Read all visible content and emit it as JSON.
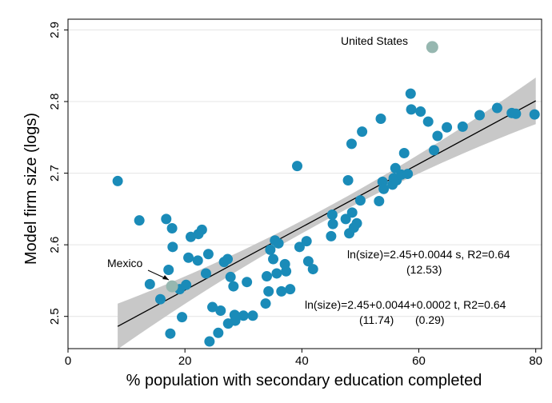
{
  "chart_data": {
    "type": "scatter",
    "xlabel": "% population with secondary education completed",
    "ylabel": "Model firm size (logs)",
    "xlim": [
      0,
      81
    ],
    "ylim": [
      2.455,
      2.915
    ],
    "x_ticks": [
      0,
      20,
      40,
      60,
      80
    ],
    "y_ticks": [
      2.5,
      2.6,
      2.7,
      2.8,
      2.9
    ],
    "grid": "horizontal",
    "colors": {
      "points": "#1a8bb8",
      "highlight": "#96b7b0",
      "band": "#c8c8c8",
      "fit_line": "#000000",
      "grid": "#e4e4e4"
    },
    "fit_line": {
      "x": [
        8.5,
        80
      ],
      "y": [
        2.486,
        2.801
      ],
      "band_halfwidth": [
        0.033,
        0.033
      ]
    },
    "points": [
      {
        "x": 8.5,
        "y": 2.689
      },
      {
        "x": 12.2,
        "y": 2.634
      },
      {
        "x": 14,
        "y": 2.545
      },
      {
        "x": 15.8,
        "y": 2.524
      },
      {
        "x": 16.8,
        "y": 2.636
      },
      {
        "x": 17.2,
        "y": 2.565
      },
      {
        "x": 17.8,
        "y": 2.623
      },
      {
        "x": 17.9,
        "y": 2.597
      },
      {
        "x": 17.5,
        "y": 2.476
      },
      {
        "x": 19.1,
        "y": 2.538
      },
      {
        "x": 19.5,
        "y": 2.499
      },
      {
        "x": 20.2,
        "y": 2.544
      },
      {
        "x": 20.6,
        "y": 2.582
      },
      {
        "x": 21,
        "y": 2.611
      },
      {
        "x": 22.2,
        "y": 2.578
      },
      {
        "x": 22.3,
        "y": 2.615
      },
      {
        "x": 22.9,
        "y": 2.621
      },
      {
        "x": 23.6,
        "y": 2.56
      },
      {
        "x": 24,
        "y": 2.587
      },
      {
        "x": 24.2,
        "y": 2.465
      },
      {
        "x": 24.7,
        "y": 2.513
      },
      {
        "x": 25.7,
        "y": 2.477
      },
      {
        "x": 26.1,
        "y": 2.508
      },
      {
        "x": 26.7,
        "y": 2.576
      },
      {
        "x": 27.3,
        "y": 2.58
      },
      {
        "x": 27.4,
        "y": 2.49
      },
      {
        "x": 27.8,
        "y": 2.555
      },
      {
        "x": 28.3,
        "y": 2.542
      },
      {
        "x": 28.5,
        "y": 2.502
      },
      {
        "x": 28.6,
        "y": 2.494
      },
      {
        "x": 30,
        "y": 2.501
      },
      {
        "x": 30.6,
        "y": 2.548
      },
      {
        "x": 31.6,
        "y": 2.501
      },
      {
        "x": 33.8,
        "y": 2.518
      },
      {
        "x": 34,
        "y": 2.556
      },
      {
        "x": 34.3,
        "y": 2.535
      },
      {
        "x": 34.6,
        "y": 2.593
      },
      {
        "x": 35.1,
        "y": 2.58
      },
      {
        "x": 35.4,
        "y": 2.606
      },
      {
        "x": 35.7,
        "y": 2.56
      },
      {
        "x": 36,
        "y": 2.602
      },
      {
        "x": 36.5,
        "y": 2.535
      },
      {
        "x": 37.1,
        "y": 2.573
      },
      {
        "x": 37.3,
        "y": 2.563
      },
      {
        "x": 38,
        "y": 2.538
      },
      {
        "x": 39.2,
        "y": 2.71
      },
      {
        "x": 39.6,
        "y": 2.597
      },
      {
        "x": 40.8,
        "y": 2.605
      },
      {
        "x": 41.1,
        "y": 2.577
      },
      {
        "x": 41.9,
        "y": 2.566
      },
      {
        "x": 45,
        "y": 2.612
      },
      {
        "x": 45.2,
        "y": 2.642
      },
      {
        "x": 45.3,
        "y": 2.629
      },
      {
        "x": 47.5,
        "y": 2.636
      },
      {
        "x": 47.9,
        "y": 2.69
      },
      {
        "x": 48.1,
        "y": 2.616
      },
      {
        "x": 48.5,
        "y": 2.741
      },
      {
        "x": 48.6,
        "y": 2.645
      },
      {
        "x": 48.9,
        "y": 2.624
      },
      {
        "x": 49.4,
        "y": 2.63
      },
      {
        "x": 50,
        "y": 2.662
      },
      {
        "x": 50.3,
        "y": 2.758
      },
      {
        "x": 53.2,
        "y": 2.661
      },
      {
        "x": 53.5,
        "y": 2.776
      },
      {
        "x": 53.8,
        "y": 2.688
      },
      {
        "x": 54,
        "y": 2.678
      },
      {
        "x": 55.5,
        "y": 2.684
      },
      {
        "x": 55.7,
        "y": 2.693
      },
      {
        "x": 56,
        "y": 2.707
      },
      {
        "x": 56.2,
        "y": 2.69
      },
      {
        "x": 57,
        "y": 2.698
      },
      {
        "x": 57.5,
        "y": 2.728
      },
      {
        "x": 58.1,
        "y": 2.699
      },
      {
        "x": 58.6,
        "y": 2.811
      },
      {
        "x": 58.7,
        "y": 2.789
      },
      {
        "x": 60.3,
        "y": 2.786
      },
      {
        "x": 61.6,
        "y": 2.772
      },
      {
        "x": 62.6,
        "y": 2.732
      },
      {
        "x": 63.2,
        "y": 2.752
      },
      {
        "x": 64.8,
        "y": 2.764
      },
      {
        "x": 67.5,
        "y": 2.765
      },
      {
        "x": 70.4,
        "y": 2.781
      },
      {
        "x": 73.4,
        "y": 2.791
      },
      {
        "x": 75.9,
        "y": 2.784
      },
      {
        "x": 76.6,
        "y": 2.783
      },
      {
        "x": 79.8,
        "y": 2.782
      }
    ],
    "highlighted_points": [
      {
        "label": "United States",
        "x": 62.3,
        "y": 2.876
      },
      {
        "label": "Mexico",
        "x": 17.8,
        "y": 2.542
      }
    ],
    "annotations": [
      {
        "text": "ln(size)=2.45+0.0044 s, R2=0.64"
      },
      {
        "text": "(12.53)"
      },
      {
        "text": "ln(size)=2.45+0.0044+0.0002 t, R2=0.64"
      },
      {
        "text": "(11.74)"
      },
      {
        "text": "(0.29)"
      }
    ]
  }
}
